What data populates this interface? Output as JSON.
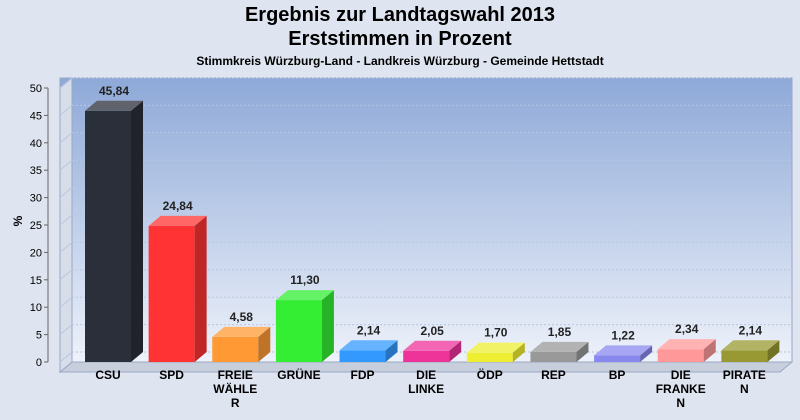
{
  "header": {
    "title": "Ergebnis zur Landtagswahl 2013",
    "subtitle": "Erststimmen in Prozent",
    "subtitle2": "Stimmkreis Würzburg-Land - Landkreis Würzburg - Gemeinde Hettstadt"
  },
  "chart_data": {
    "type": "bar",
    "title": "Ergebnis zur Landtagswahl 2013",
    "subtitle": "Erststimmen in Prozent",
    "ylabel": "%",
    "xlabel": "",
    "ylim": [
      0,
      50
    ],
    "yticks": [
      0,
      5,
      10,
      15,
      20,
      25,
      30,
      35,
      40,
      45,
      50
    ],
    "grid": true,
    "categories": [
      "CSU",
      "SPD",
      "FREIE WÄHLER",
      "GRÜNE",
      "FDP",
      "DIE LINKE",
      "ÖDP",
      "REP",
      "BP",
      "DIE FRANKEN",
      "PIRATEN"
    ],
    "category_label_lines": [
      [
        "CSU"
      ],
      [
        "SPD"
      ],
      [
        "FREIE",
        "WÄHLE",
        "R"
      ],
      [
        "GRÜNE"
      ],
      [
        "FDP"
      ],
      [
        "DIE",
        "LINKE"
      ],
      [
        "ÖDP"
      ],
      [
        "REP"
      ],
      [
        "BP"
      ],
      [
        "DIE",
        "FRANKE",
        "N"
      ],
      [
        "PIRATE",
        "N"
      ]
    ],
    "values": [
      45.84,
      24.84,
      4.58,
      11.3,
      2.14,
      2.05,
      1.7,
      1.85,
      1.22,
      2.34,
      2.14
    ],
    "value_labels": [
      "45,84",
      "24,84",
      "4,58",
      "11,30",
      "2,14",
      "2,05",
      "1,70",
      "1,85",
      "1,22",
      "2,34",
      "2,14"
    ],
    "colors": [
      "#2b2f3a",
      "#ff3333",
      "#ff9933",
      "#33ee33",
      "#3399ff",
      "#ee3399",
      "#eeee33",
      "#999999",
      "#8888ee",
      "#ff9999",
      "#999933"
    ]
  }
}
